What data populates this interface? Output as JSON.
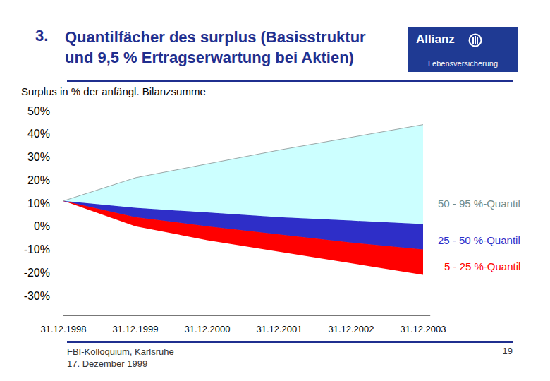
{
  "header": {
    "number": "3.",
    "title": [
      "Quantilfächer des surplus (Basisstruktur",
      "und 9,5 % Ertragserwartung bei Aktien)"
    ]
  },
  "logo": {
    "brand": "Allianz",
    "subtitle": "Lebensversicherung"
  },
  "chart_data": {
    "type": "area",
    "y_label": "Surplus in % der anfängl. Bilanzsumme",
    "categories": [
      "31.12.1998",
      "31.12.1999",
      "31.12.2000",
      "31.12.2001",
      "31.12.2002",
      "31.12.2003"
    ],
    "series": [
      {
        "name": "5 - 25 %-Quantil",
        "color": "#ff0000",
        "lower": [
          11,
          0,
          -6,
          -11,
          -16,
          -21
        ],
        "upper": [
          11,
          4,
          0,
          -3.5,
          -7,
          -10
        ]
      },
      {
        "name": "25 - 50 %-Quantil",
        "color": "#2e2ec8",
        "lower": [
          11,
          4,
          0,
          -3.5,
          -7,
          -10
        ],
        "upper": [
          11,
          8,
          6,
          4,
          2.5,
          1
        ]
      },
      {
        "name": "50 - 95 %-Quantil",
        "color": "#ccffff",
        "lower": [
          11,
          8,
          6,
          4,
          2.5,
          1
        ],
        "upper": [
          11,
          21,
          27,
          33,
          38.5,
          44
        ]
      }
    ],
    "ylim": [
      -30,
      50
    ],
    "yticks": [
      {
        "value": -30,
        "label": "-30%"
      },
      {
        "value": -20,
        "label": "-20%"
      },
      {
        "value": -10,
        "label": "-10%"
      },
      {
        "value": 0,
        "label": "0%"
      },
      {
        "value": 10,
        "label": "10%"
      },
      {
        "value": 20,
        "label": "20%"
      },
      {
        "value": 30,
        "label": "30%"
      },
      {
        "value": 40,
        "label": "40%"
      },
      {
        "value": 50,
        "label": "50%"
      }
    ],
    "grid": false
  },
  "footer": {
    "event": "FBI-Kolloquium, Karlsruhe",
    "date": "17. Dezember 1999",
    "page": "19"
  }
}
